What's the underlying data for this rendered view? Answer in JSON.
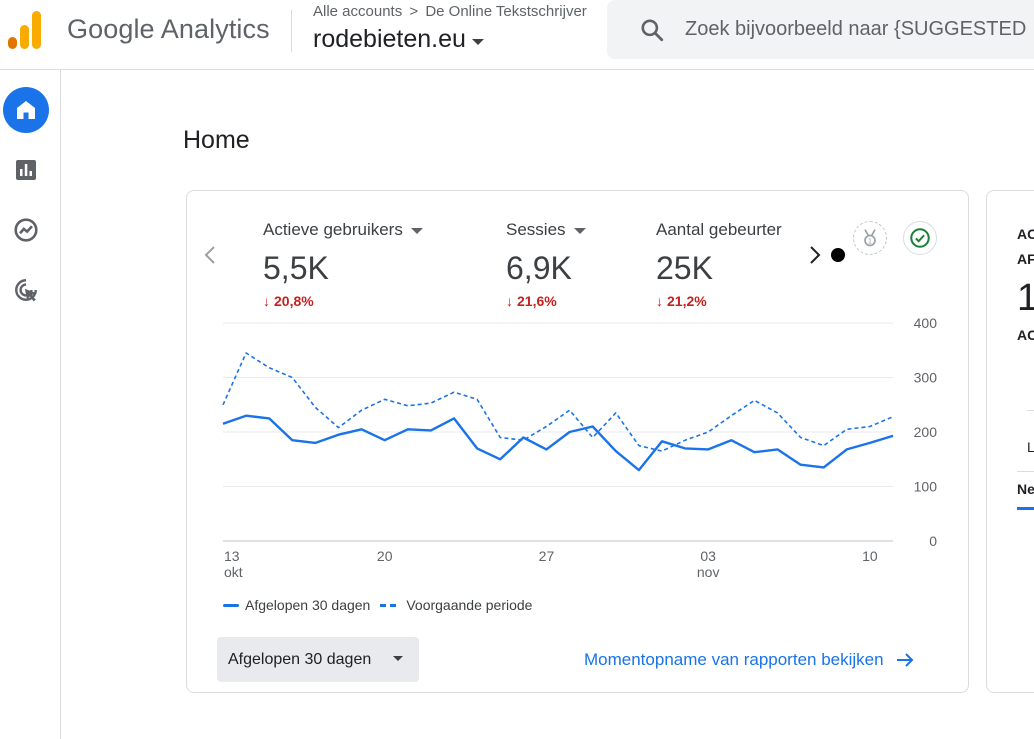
{
  "header": {
    "app_name": "Google Analytics",
    "breadcrumb": [
      "Alle accounts",
      "De Online Tekstschrijver"
    ],
    "breadcrumb_separator": ">",
    "property": "rodebieten.eu",
    "search_placeholder": "Zoek bijvoorbeeld naar {SUGGESTED"
  },
  "nav": {
    "items": [
      {
        "icon": "home-icon",
        "active": true
      },
      {
        "icon": "reports-icon",
        "active": false
      },
      {
        "icon": "explore-icon",
        "active": false
      },
      {
        "icon": "advertising-icon",
        "active": false
      }
    ]
  },
  "page": {
    "title": "Home"
  },
  "overview": {
    "metrics": [
      {
        "label": "Actieve gebruikers",
        "value": "5,5K",
        "change": "20,8%",
        "direction": "down"
      },
      {
        "label": "Sessies",
        "value": "6,9K",
        "change": "21,6%",
        "direction": "down"
      },
      {
        "label": "Aantal gebeurter",
        "value": "25K",
        "change": "21,2%",
        "direction": "down"
      }
    ],
    "legend": {
      "current": "Afgelopen 30 dagen",
      "previous": "Voorgaande periode"
    },
    "date_range": "Afgelopen 30 dagen",
    "report_link": "Momentopname van rapporten bekijken",
    "colors": {
      "line": "#1a73e8",
      "negative": "#c5221f"
    }
  },
  "side_card": {
    "lines": [
      "AC",
      "AF",
      "1",
      "AC",
      "L",
      "Ne"
    ]
  },
  "chart_data": {
    "type": "line",
    "x_tick_labels": [
      {
        "day": "13",
        "month": "okt"
      },
      {
        "day": "20",
        "month": ""
      },
      {
        "day": "27",
        "month": ""
      },
      {
        "day": "03",
        "month": "nov"
      },
      {
        "day": "10",
        "month": ""
      }
    ],
    "y_ticks": [
      0,
      100,
      200,
      300,
      400
    ],
    "ylim": [
      0,
      400
    ],
    "grid": true,
    "legend_position": "bottom-left",
    "series": [
      {
        "name": "Afgelopen 30 dagen",
        "style": "solid",
        "values": [
          215,
          230,
          225,
          185,
          180,
          195,
          205,
          185,
          205,
          203,
          225,
          170,
          150,
          190,
          168,
          200,
          210,
          165,
          130,
          183,
          170,
          168,
          185,
          163,
          168,
          140,
          135,
          168,
          180,
          193
        ]
      },
      {
        "name": "Voorgaande periode",
        "style": "dashed",
        "values": [
          250,
          345,
          318,
          300,
          245,
          208,
          240,
          260,
          248,
          253,
          273,
          260,
          190,
          185,
          210,
          240,
          190,
          235,
          175,
          165,
          185,
          200,
          230,
          258,
          235,
          190,
          175,
          205,
          210,
          228
        ]
      }
    ]
  }
}
